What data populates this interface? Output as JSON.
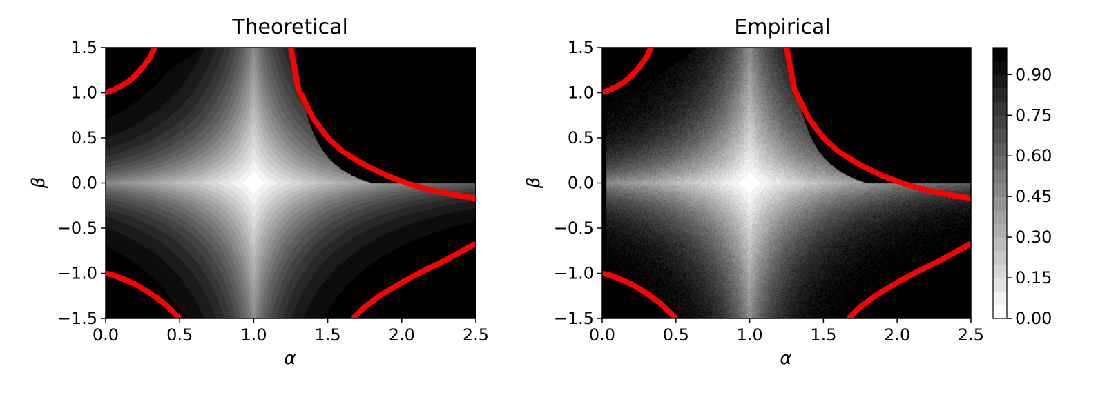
{
  "chart_data": [
    {
      "type": "heatmap",
      "title": "Theoretical",
      "xlabel": "α",
      "ylabel": "β",
      "xlim": [
        0.0,
        2.5
      ],
      "ylim": [
        -1.5,
        1.5
      ],
      "xticks": [
        "0.0",
        "0.5",
        "1.0",
        "1.5",
        "2.0",
        "2.5"
      ],
      "yticks": [
        "1.5",
        "1.0",
        "0.5",
        "0.0",
        "−0.5",
        "−1.0",
        "−1.5"
      ],
      "field": "grayscale value rises from 0 near the lines α=1 and β=0 toward 1 near the red boundary curves; black outside the boundary",
      "boundary_color": "#ff0000",
      "boundary_curves": [
        {
          "name": "upper-left",
          "points": [
            [
              0.0,
              1.0
            ],
            [
              0.05,
              1.03
            ],
            [
              0.1,
              1.07
            ],
            [
              0.15,
              1.12
            ],
            [
              0.2,
              1.19
            ],
            [
              0.25,
              1.28
            ],
            [
              0.3,
              1.39
            ],
            [
              0.33,
              1.5
            ]
          ]
        },
        {
          "name": "upper-right",
          "points": [
            [
              1.25,
              1.5
            ],
            [
              1.3,
              1.05
            ],
            [
              1.4,
              0.72
            ],
            [
              1.5,
              0.5
            ],
            [
              1.6,
              0.35
            ],
            [
              1.75,
              0.2
            ],
            [
              1.9,
              0.08
            ],
            [
              2.05,
              -0.01
            ],
            [
              2.2,
              -0.08
            ],
            [
              2.35,
              -0.13
            ],
            [
              2.5,
              -0.17
            ]
          ]
        },
        {
          "name": "lower-left",
          "points": [
            [
              0.0,
              -1.0
            ],
            [
              0.05,
              -1.02
            ],
            [
              0.1,
              -1.05
            ],
            [
              0.2,
              -1.12
            ],
            [
              0.3,
              -1.22
            ],
            [
              0.4,
              -1.34
            ],
            [
              0.5,
              -1.5
            ]
          ]
        },
        {
          "name": "lower-right",
          "points": [
            [
              1.67,
              -1.5
            ],
            [
              1.75,
              -1.37
            ],
            [
              1.85,
              -1.25
            ],
            [
              2.0,
              -1.1
            ],
            [
              2.15,
              -0.97
            ],
            [
              2.3,
              -0.85
            ],
            [
              2.5,
              -0.67
            ]
          ]
        }
      ]
    },
    {
      "type": "heatmap",
      "title": "Empirical",
      "xlabel": "α",
      "ylabel": "β",
      "xlim": [
        0.0,
        2.5
      ],
      "ylim": [
        -1.5,
        1.5
      ],
      "xticks": [
        "0.0",
        "0.5",
        "1.0",
        "1.5",
        "2.0",
        "2.5"
      ],
      "yticks": [
        "1.5",
        "1.0",
        "0.5",
        "0.0",
        "−0.5",
        "−1.0",
        "−1.5"
      ],
      "field": "same structure as Theoretical with visible sampling noise",
      "boundary_color": "#ff0000",
      "boundary_curves": [
        {
          "name": "upper-left",
          "points": [
            [
              0.0,
              1.0
            ],
            [
              0.05,
              1.03
            ],
            [
              0.1,
              1.07
            ],
            [
              0.15,
              1.12
            ],
            [
              0.2,
              1.19
            ],
            [
              0.25,
              1.28
            ],
            [
              0.3,
              1.39
            ],
            [
              0.33,
              1.5
            ]
          ]
        },
        {
          "name": "upper-right",
          "points": [
            [
              1.25,
              1.5
            ],
            [
              1.3,
              1.05
            ],
            [
              1.4,
              0.72
            ],
            [
              1.5,
              0.5
            ],
            [
              1.6,
              0.35
            ],
            [
              1.75,
              0.2
            ],
            [
              1.9,
              0.08
            ],
            [
              2.05,
              -0.01
            ],
            [
              2.2,
              -0.08
            ],
            [
              2.35,
              -0.13
            ],
            [
              2.5,
              -0.17
            ]
          ]
        },
        {
          "name": "lower-left",
          "points": [
            [
              0.0,
              -1.0
            ],
            [
              0.05,
              -1.02
            ],
            [
              0.1,
              -1.05
            ],
            [
              0.2,
              -1.12
            ],
            [
              0.3,
              -1.22
            ],
            [
              0.4,
              -1.34
            ],
            [
              0.5,
              -1.5
            ]
          ]
        },
        {
          "name": "lower-right",
          "points": [
            [
              1.67,
              -1.5
            ],
            [
              1.75,
              -1.37
            ],
            [
              1.85,
              -1.25
            ],
            [
              2.0,
              -1.1
            ],
            [
              2.15,
              -0.97
            ],
            [
              2.3,
              -0.85
            ],
            [
              2.5,
              -0.67
            ]
          ]
        }
      ]
    }
  ],
  "colorbar": {
    "range": [
      0.0,
      1.0
    ],
    "levels": 20,
    "ticks": [
      "0.00",
      "0.15",
      "0.30",
      "0.45",
      "0.60",
      "0.75",
      "0.90"
    ],
    "tick_values": [
      0.0,
      0.15,
      0.3,
      0.45,
      0.6,
      0.75,
      0.9
    ],
    "colormap": "white-to-black"
  }
}
